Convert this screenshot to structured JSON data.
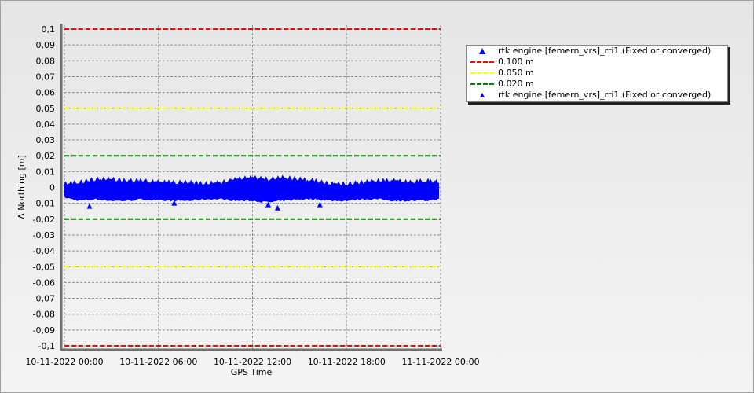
{
  "chart_data": {
    "type": "scatter",
    "xlabel": "GPS Time",
    "ylabel": "Δ Northing [m]",
    "ylim": [
      -0.1,
      0.1
    ],
    "yticks": [
      "0,1",
      "0,09",
      "0,08",
      "0,07",
      "0,06",
      "0,05",
      "0,04",
      "0,03",
      "0,02",
      "0,01",
      "0",
      "-0,01",
      "-0,02",
      "-0,03",
      "-0,04",
      "-0,05",
      "-0,06",
      "-0,07",
      "-0,08",
      "-0,09",
      "-0,1"
    ],
    "ytick_values": [
      0.1,
      0.09,
      0.08,
      0.07,
      0.06,
      0.05,
      0.04,
      0.03,
      0.02,
      0.01,
      0,
      -0.01,
      -0.02,
      -0.03,
      -0.04,
      -0.05,
      -0.06,
      -0.07,
      -0.08,
      -0.09,
      -0.1
    ],
    "xticks": [
      "10-11-2022 00:00",
      "10-11-2022 06:00",
      "10-11-2022 12:00",
      "10-11-2022 18:00",
      "11-11-2022 00:00"
    ],
    "xlim_hours": [
      0,
      24
    ],
    "grid": true,
    "legend_position": "right",
    "series": [
      {
        "name": "rtk engine [femern_vrs]_rri1 (Fixed or converged)",
        "color": "#0000ff",
        "marker": "triangle",
        "hours": [
          0,
          1,
          2,
          3,
          4,
          5,
          6,
          7,
          8,
          9,
          10,
          11,
          12,
          13,
          14,
          15,
          16,
          17,
          18,
          19,
          20,
          21,
          22,
          23,
          24
        ],
        "upper_envelope": [
          0.003,
          0.004,
          0.006,
          0.006,
          0.005,
          0.005,
          0.004,
          0.004,
          0.004,
          0.003,
          0.004,
          0.006,
          0.007,
          0.006,
          0.007,
          0.006,
          0.005,
          0.003,
          0.003,
          0.004,
          0.005,
          0.005,
          0.004,
          0.005,
          0.004
        ],
        "lower_envelope": [
          -0.007,
          -0.009,
          -0.008,
          -0.009,
          -0.009,
          -0.008,
          -0.009,
          -0.009,
          -0.009,
          -0.008,
          -0.008,
          -0.009,
          -0.009,
          -0.01,
          -0.009,
          -0.008,
          -0.008,
          -0.009,
          -0.009,
          -0.008,
          -0.008,
          -0.009,
          -0.009,
          -0.009,
          -0.008
        ],
        "outliers": [
          {
            "hour": 1.6,
            "value": -0.012
          },
          {
            "hour": 7.0,
            "value": -0.01
          },
          {
            "hour": 13.0,
            "value": -0.011
          },
          {
            "hour": 13.6,
            "value": -0.013
          },
          {
            "hour": 16.3,
            "value": -0.011
          }
        ]
      },
      {
        "name": "0.100 m",
        "color": "#ff0000",
        "style": "dashed",
        "values": [
          0.1,
          -0.1
        ]
      },
      {
        "name": "0.050 m",
        "color": "#ffff00",
        "style": "dashed",
        "values": [
          0.05,
          -0.05
        ]
      },
      {
        "name": "0.020 m",
        "color": "#008000",
        "style": "dashed",
        "values": [
          0.02,
          -0.02
        ]
      }
    ],
    "legend": [
      {
        "label": "rtk engine [femern_vrs]_rri1 (Fixed or converged)",
        "symbol": "triangle"
      },
      {
        "label": "0.100 m",
        "symbol": "dash",
        "color": "#ff0000"
      },
      {
        "label": "0.050 m",
        "symbol": "dash",
        "color": "#ffff00"
      },
      {
        "label": "0.020 m",
        "symbol": "dash",
        "color": "#008000"
      },
      {
        "label": "rtk engine [femern_vrs]_rri1 (Fixed or converged)",
        "symbol": "triangle-small"
      }
    ]
  }
}
